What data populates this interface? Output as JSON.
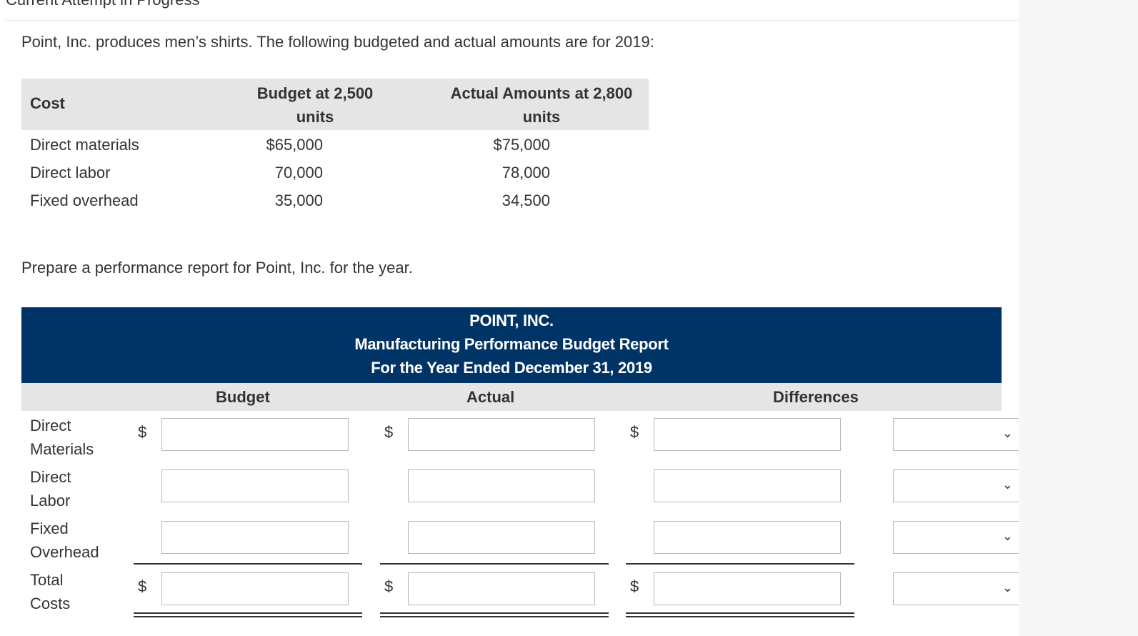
{
  "header": {
    "attempt_label": "Current Attempt in Progress"
  },
  "problem": {
    "intro": "Point, Inc. produces men’s shirts. The following budgeted and actual amounts are for 2019:",
    "instruction": "Prepare a performance report for Point, Inc. for the year."
  },
  "cost_table": {
    "headers": {
      "cost": "Cost",
      "budget_line1": "Budget at 2,500",
      "budget_line2": "units",
      "actual_line1": "Actual Amounts at 2,800",
      "actual_line2": "units"
    },
    "rows": [
      {
        "label": "Direct materials",
        "budget": "$65,000",
        "actual": "$75,000"
      },
      {
        "label": "Direct labor",
        "budget": "70,000",
        "actual": "78,000"
      },
      {
        "label": "Fixed overhead",
        "budget": "35,000",
        "actual": "34,500"
      }
    ]
  },
  "report": {
    "company": "POINT, INC.",
    "title": "Manufacturing Performance Budget Report",
    "period": "For the Year Ended December 31, 2019",
    "columns": {
      "budget": "Budget",
      "actual": "Actual",
      "differences": "Differences"
    },
    "currency_symbol": "$",
    "rows": [
      {
        "label_line1": "Direct",
        "label_line2": "Materials",
        "budget_value": "",
        "actual_value": "",
        "difference_value": "",
        "difference_type": ""
      },
      {
        "label_line1": "Direct",
        "label_line2": "Labor",
        "budget_value": "",
        "actual_value": "",
        "difference_value": "",
        "difference_type": ""
      },
      {
        "label_line1": "Fixed",
        "label_line2": "Overhead",
        "budget_value": "",
        "actual_value": "",
        "difference_value": "",
        "difference_type": ""
      },
      {
        "label_line1": "Total",
        "label_line2": "Costs",
        "budget_value": "",
        "actual_value": "",
        "difference_value": "",
        "difference_type": ""
      }
    ]
  },
  "colors": {
    "report_header_bg": "#003366",
    "table_header_bg": "#e5e5e5",
    "input_border": "#b8b8b8"
  },
  "icons": {
    "select_chevron": "chevron-down-icon"
  }
}
